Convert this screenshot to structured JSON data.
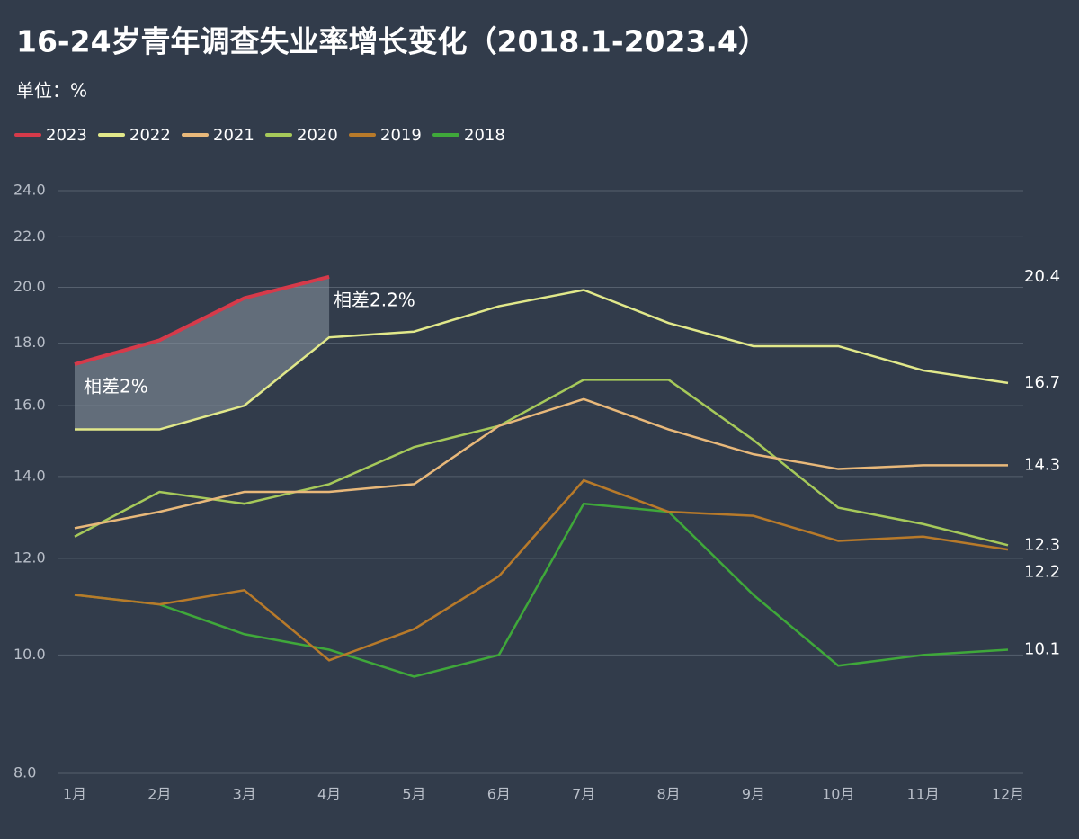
{
  "chart_data": {
    "type": "line",
    "title": "16-24岁青年调查失业率增长变化（2018.1-2023.4）",
    "subtitle": "单位：%",
    "categories": [
      "1月",
      "2月",
      "3月",
      "4月",
      "5月",
      "6月",
      "7月",
      "8月",
      "9月",
      "10月",
      "11月",
      "12月"
    ],
    "series": [
      {
        "name": "2023",
        "color": "#d63a4a",
        "values": [
          17.3,
          18.1,
          19.6,
          20.4,
          null,
          null,
          null,
          null,
          null,
          null,
          null,
          null
        ]
      },
      {
        "name": "2022",
        "color": "#e1e88a",
        "values": [
          15.3,
          15.3,
          16.0,
          18.2,
          18.4,
          19.3,
          19.9,
          18.7,
          17.9,
          17.9,
          17.1,
          16.7
        ]
      },
      {
        "name": "2021",
        "color": "#e8b87a",
        "values": [
          12.7,
          13.1,
          13.6,
          13.6,
          13.8,
          15.4,
          16.2,
          15.3,
          14.6,
          14.2,
          14.3,
          14.3
        ]
      },
      {
        "name": "2020",
        "color": "#a6c95a",
        "values": [
          12.5,
          13.6,
          13.3,
          13.8,
          14.8,
          15.4,
          16.8,
          16.8,
          15.0,
          13.2,
          12.8,
          12.3
        ]
      },
      {
        "name": "2019",
        "color": "#b87a2a",
        "values": [
          11.2,
          11.0,
          11.3,
          9.9,
          10.5,
          11.6,
          13.9,
          13.1,
          13.0,
          12.4,
          12.5,
          12.2
        ]
      },
      {
        "name": "2018",
        "color": "#3fa83a",
        "values": [
          11.2,
          11.0,
          10.4,
          10.1,
          9.6,
          10.0,
          13.3,
          13.1,
          11.2,
          9.8,
          10.0,
          10.1
        ]
      }
    ],
    "annotations": [
      "相差2%",
      "相差2.2%"
    ],
    "log_scale": true,
    "ylim": [
      8,
      24
    ],
    "yticks": [
      {
        "value": 8,
        "label": "8.0"
      },
      {
        "value": 10,
        "label": "10.0"
      },
      {
        "value": 12,
        "label": "12.0"
      },
      {
        "value": 14,
        "label": "14.0"
      },
      {
        "value": 16,
        "label": "16.0"
      },
      {
        "value": 18,
        "label": "18.0"
      },
      {
        "value": 20,
        "label": "20.0"
      },
      {
        "value": 22,
        "label": "22.0"
      },
      {
        "value": 24,
        "label": "24.0"
      }
    ],
    "grid": true,
    "legend": "top-left"
  }
}
